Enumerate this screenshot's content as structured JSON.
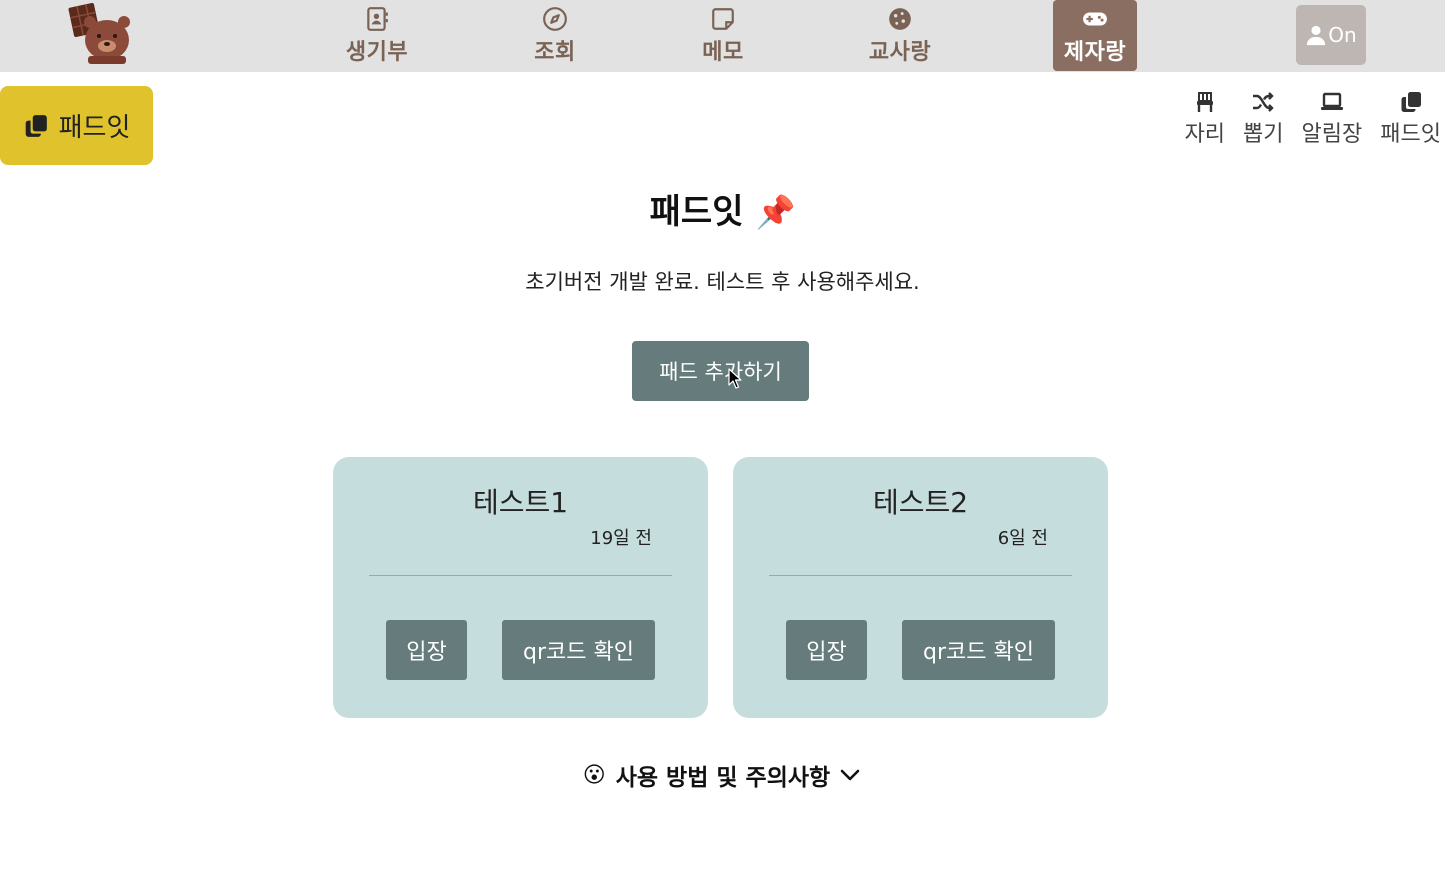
{
  "nav": {
    "items": [
      {
        "label": "생기부",
        "icon": "contact-book-icon"
      },
      {
        "label": "조회",
        "icon": "compass-icon"
      },
      {
        "label": "메모",
        "icon": "note-icon"
      },
      {
        "label": "교사랑",
        "icon": "cookie-icon"
      },
      {
        "label": "제자랑",
        "icon": "gamepad-icon",
        "active": true
      }
    ],
    "login_label": "On"
  },
  "side_badge": {
    "label": "패드잇",
    "icon": "copy-icon"
  },
  "tools": [
    {
      "label": "자리",
      "icon": "chair-icon"
    },
    {
      "label": "뽑기",
      "icon": "shuffle-icon"
    },
    {
      "label": "알림장",
      "icon": "laptop-icon"
    },
    {
      "label": "패드잇",
      "icon": "copy-icon"
    }
  ],
  "main": {
    "title": "패드잇",
    "title_emoji": "📌",
    "subtitle": "초기버전 개발 완료. 테스트 후 사용해주세요.",
    "add_button": "패드 추가하기"
  },
  "pads": [
    {
      "name": "테스트1",
      "time": "19일 전",
      "enter": "입장",
      "qr": "qr코드 확인"
    },
    {
      "name": "테스트2",
      "time": "6일 전",
      "enter": "입장",
      "qr": "qr코드 확인"
    }
  ],
  "howto": {
    "emoji": "😮",
    "label": "사용 방법 및 주의사항"
  },
  "colors": {
    "nav_bg": "#e2e2e2",
    "nav_text": "#7a6355",
    "nav_active": "#8a6e62",
    "badge": "#e0c22d",
    "button": "#667b7b",
    "card": "#c6dddd"
  }
}
